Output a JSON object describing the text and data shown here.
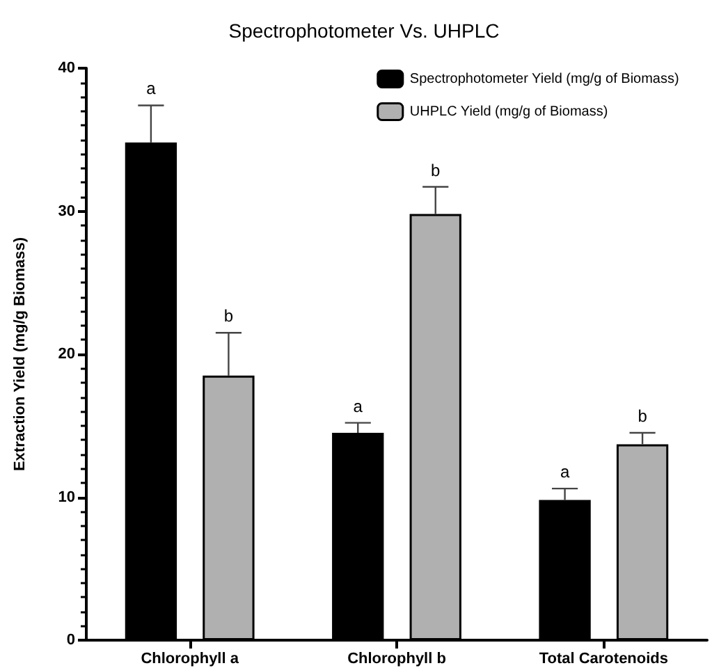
{
  "chart_data": {
    "type": "bar",
    "title": "Spectrophotometer Vs. UHPLC",
    "ylabel": "Extraction Yield (mg/g Biomass)",
    "categories": [
      "Chlorophyll a",
      "Chlorophyll b",
      "Total Carotenoids"
    ],
    "series": [
      {
        "name": "Spectrophotometer Yield (mg/g of Biomass)",
        "color": "#000000",
        "values": [
          34.8,
          14.5,
          9.8
        ],
        "errors": [
          [
            34.8,
            37.4
          ],
          [
            14.5,
            15.2
          ],
          [
            9.8,
            10.6
          ]
        ]
      },
      {
        "name": "UHPLC Yield (mg/g of Biomass)",
        "color": "#b0b0b0",
        "values": [
          18.5,
          29.8,
          13.7
        ],
        "errors": [
          [
            18.5,
            21.5
          ],
          [
            29.8,
            31.7
          ],
          [
            13.7,
            14.5
          ]
        ]
      }
    ],
    "annotations": [
      "a",
      "b",
      "a",
      "b",
      "a",
      "b"
    ],
    "ylim": [
      0,
      40
    ],
    "yticks": [
      0,
      10,
      20,
      30,
      40
    ],
    "grid": false,
    "legend": "top right"
  }
}
